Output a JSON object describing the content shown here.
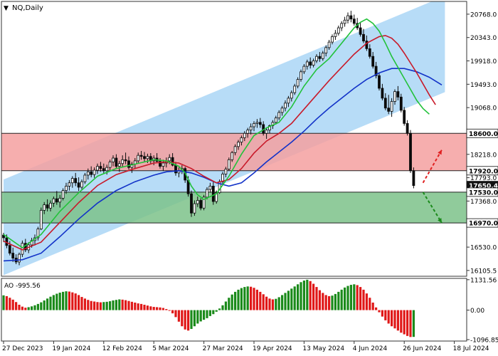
{
  "chart_data": {
    "type": "candlestick",
    "title": "NQ,Daily",
    "symbol_marker": "▼",
    "colors": {
      "channel_fill": "#b7dcf7",
      "upper_zone": "#f4a0a0",
      "lower_zone": "#7dc28a",
      "candle": "#0a0a0a",
      "ma_fast": "#22c23a",
      "ma_mid": "#c81a2a",
      "ma_slow": "#1232c8",
      "ao_up": "#1a8a1a",
      "ao_down": "#e01818",
      "arrow_up": "#e02020",
      "arrow_down": "#1a8a1a"
    },
    "price_axis": {
      "ylim": [
        16000,
        21000
      ],
      "ticks": [
        "20768.0",
        "20343.0",
        "19918.0",
        "19493.0",
        "19068.0",
        "18643.0",
        "18218.0",
        "17793.0",
        "17368.0",
        "16943.0",
        "16530.0",
        "16105.5"
      ]
    },
    "levels": [
      {
        "label": "18600.0",
        "value": 18600,
        "style": "line"
      },
      {
        "label": "17920.0",
        "value": 17920,
        "style": "line"
      },
      {
        "label": "17650.4",
        "value": 17650.4,
        "style": "current"
      },
      {
        "label": "17530.0",
        "value": 17530,
        "style": "line"
      },
      {
        "label": "16970.0",
        "value": 16970,
        "style": "line"
      }
    ],
    "zones": [
      {
        "name": "resistance-zone",
        "from": 17920,
        "to": 18600
      },
      {
        "name": "support-zone",
        "from": 16970,
        "to": 17530
      }
    ],
    "channel": {
      "upper": [
        [
          0,
          17760
        ],
        [
          141,
          21100
        ]
      ],
      "lower": [
        [
          0,
          16020
        ],
        [
          141,
          19350
        ]
      ]
    },
    "ohlc": [
      [
        16750,
        16790,
        16620,
        16700
      ],
      [
        16700,
        16760,
        16510,
        16560
      ],
      [
        16560,
        16640,
        16380,
        16420
      ],
      [
        16420,
        16520,
        16260,
        16330
      ],
      [
        16330,
        16400,
        16220,
        16260
      ],
      [
        16260,
        16430,
        16200,
        16400
      ],
      [
        16400,
        16650,
        16350,
        16600
      ],
      [
        16600,
        16680,
        16440,
        16480
      ],
      [
        16480,
        16620,
        16420,
        16570
      ],
      [
        16570,
        16700,
        16520,
        16650
      ],
      [
        16650,
        16760,
        16560,
        16700
      ],
      [
        16700,
        16900,
        16650,
        16860
      ],
      [
        16860,
        17250,
        16840,
        17200
      ],
      [
        17200,
        17350,
        17130,
        17300
      ],
      [
        17300,
        17400,
        17180,
        17240
      ],
      [
        17240,
        17380,
        17180,
        17330
      ],
      [
        17330,
        17450,
        17260,
        17410
      ],
      [
        17410,
        17550,
        17300,
        17350
      ],
      [
        17350,
        17480,
        17250,
        17420
      ],
      [
        17420,
        17600,
        17380,
        17560
      ],
      [
        17560,
        17700,
        17500,
        17640
      ],
      [
        17640,
        17750,
        17560,
        17700
      ],
      [
        17700,
        17820,
        17610,
        17780
      ],
      [
        17780,
        17880,
        17640,
        17700
      ],
      [
        17700,
        17800,
        17550,
        17620
      ],
      [
        17620,
        17760,
        17560,
        17720
      ],
      [
        17720,
        17880,
        17680,
        17840
      ],
      [
        17840,
        17960,
        17760,
        17900
      ],
      [
        17900,
        18000,
        17800,
        17850
      ],
      [
        17850,
        17980,
        17790,
        17930
      ],
      [
        17930,
        18050,
        17860,
        18000
      ],
      [
        18000,
        18080,
        17900,
        17960
      ],
      [
        17960,
        18050,
        17860,
        17920
      ],
      [
        17920,
        18030,
        17850,
        17980
      ],
      [
        17980,
        18120,
        17930,
        18080
      ],
      [
        18080,
        18200,
        18000,
        18150
      ],
      [
        18150,
        18220,
        17950,
        18000
      ],
      [
        18000,
        18100,
        17900,
        18050
      ],
      [
        18050,
        18200,
        17980,
        18120
      ],
      [
        18120,
        18250,
        18040,
        18100
      ],
      [
        18100,
        18180,
        17940,
        17980
      ],
      [
        17980,
        18080,
        17880,
        18040
      ],
      [
        18040,
        18150,
        17960,
        18100
      ],
      [
        18100,
        18250,
        18060,
        18200
      ],
      [
        18200,
        18280,
        18120,
        18180
      ],
      [
        18180,
        18260,
        18080,
        18140
      ],
      [
        18140,
        18230,
        18060,
        18180
      ],
      [
        18180,
        18240,
        18050,
        18100
      ],
      [
        18100,
        18200,
        18020,
        18150
      ],
      [
        18150,
        18240,
        18060,
        18090
      ],
      [
        18090,
        18150,
        17960,
        18000
      ],
      [
        18000,
        18120,
        17920,
        18060
      ],
      [
        18060,
        18160,
        17980,
        18100
      ],
      [
        18100,
        18220,
        18040,
        18160
      ],
      [
        18160,
        18240,
        18000,
        18020
      ],
      [
        18020,
        18080,
        17830,
        17880
      ],
      [
        17880,
        17980,
        17800,
        17920
      ],
      [
        17920,
        18020,
        17860,
        17960
      ],
      [
        17960,
        17990,
        17700,
        17750
      ],
      [
        17750,
        17820,
        17450,
        17500
      ],
      [
        17500,
        17560,
        17080,
        17150
      ],
      [
        17150,
        17380,
        17100,
        17320
      ],
      [
        17320,
        17450,
        17260,
        17380
      ],
      [
        17380,
        17420,
        17200,
        17240
      ],
      [
        17240,
        17480,
        17200,
        17440
      ],
      [
        17440,
        17620,
        17400,
        17580
      ],
      [
        17580,
        17700,
        17520,
        17640
      ],
      [
        17640,
        17720,
        17300,
        17360
      ],
      [
        17360,
        17560,
        17320,
        17520
      ],
      [
        17520,
        17760,
        17500,
        17720
      ],
      [
        17720,
        17900,
        17680,
        17860
      ],
      [
        17860,
        17990,
        17800,
        17950
      ],
      [
        17950,
        18160,
        17920,
        18120
      ],
      [
        18120,
        18280,
        18080,
        18250
      ],
      [
        18250,
        18400,
        18200,
        18360
      ],
      [
        18360,
        18480,
        18300,
        18440
      ],
      [
        18440,
        18560,
        18380,
        18520
      ],
      [
        18520,
        18640,
        18460,
        18600
      ],
      [
        18600,
        18700,
        18520,
        18660
      ],
      [
        18660,
        18780,
        18580,
        18720
      ],
      [
        18720,
        18820,
        18640,
        18780
      ],
      [
        18780,
        18860,
        18700,
        18800
      ],
      [
        18800,
        18880,
        18700,
        18760
      ],
      [
        18760,
        18820,
        18560,
        18600
      ],
      [
        18600,
        18700,
        18500,
        18660
      ],
      [
        18660,
        18760,
        18600,
        18740
      ],
      [
        18740,
        18840,
        18680,
        18800
      ],
      [
        18800,
        18920,
        18760,
        18880
      ],
      [
        18880,
        19020,
        18840,
        18980
      ],
      [
        18980,
        19100,
        18920,
        19060
      ],
      [
        19060,
        19200,
        19000,
        19150
      ],
      [
        19150,
        19280,
        19080,
        19240
      ],
      [
        19240,
        19380,
        19180,
        19340
      ],
      [
        19340,
        19500,
        19300,
        19460
      ],
      [
        19460,
        19620,
        19420,
        19580
      ],
      [
        19580,
        19760,
        19540,
        19720
      ],
      [
        19720,
        19860,
        19680,
        19820
      ],
      [
        19820,
        19940,
        19760,
        19900
      ],
      [
        19900,
        19980,
        19780,
        19840
      ],
      [
        19840,
        19960,
        19800,
        19920
      ],
      [
        19920,
        20040,
        19880,
        20000
      ],
      [
        20000,
        20080,
        19900,
        19960
      ],
      [
        19960,
        20100,
        19920,
        20060
      ],
      [
        20060,
        20200,
        20000,
        20160
      ],
      [
        20160,
        20300,
        20120,
        20260
      ],
      [
        20260,
        20400,
        20220,
        20360
      ],
      [
        20360,
        20480,
        20300,
        20420
      ],
      [
        20420,
        20560,
        20380,
        20520
      ],
      [
        20520,
        20640,
        20460,
        20600
      ],
      [
        20600,
        20720,
        20540,
        20660
      ],
      [
        20660,
        20800,
        20600,
        20740
      ],
      [
        20740,
        20830,
        20620,
        20680
      ],
      [
        20680,
        20760,
        20560,
        20600
      ],
      [
        20600,
        20700,
        20480,
        20520
      ],
      [
        20520,
        20620,
        20360,
        20400
      ],
      [
        20400,
        20500,
        20240,
        20280
      ],
      [
        20280,
        20380,
        20100,
        20140
      ],
      [
        20140,
        20220,
        19960,
        20000
      ],
      [
        20000,
        20080,
        19780,
        19820
      ],
      [
        19820,
        19900,
        19600,
        19650
      ],
      [
        19650,
        19700,
        19380,
        19420
      ],
      [
        19420,
        19500,
        19200,
        19240
      ],
      [
        19240,
        19330,
        19020,
        19060
      ],
      [
        19060,
        19300,
        18950,
        19000
      ],
      [
        19000,
        19240,
        18900,
        19180
      ],
      [
        19180,
        19400,
        19120,
        19360
      ],
      [
        19360,
        19460,
        19200,
        19260
      ],
      [
        19260,
        19320,
        18980,
        19020
      ],
      [
        19020,
        19080,
        18740,
        18780
      ],
      [
        18780,
        18840,
        18560,
        18600
      ],
      [
        18600,
        18660,
        17880,
        17920
      ],
      [
        17920,
        17980,
        17600,
        17650.4
      ]
    ],
    "ma_fast": [
      [
        0,
        16760
      ],
      [
        6,
        16520
      ],
      [
        12,
        16760
      ],
      [
        18,
        17180
      ],
      [
        24,
        17520
      ],
      [
        30,
        17820
      ],
      [
        36,
        17960
      ],
      [
        42,
        18040
      ],
      [
        48,
        18120
      ],
      [
        52,
        18100
      ],
      [
        56,
        18000
      ],
      [
        58,
        17880
      ],
      [
        60,
        17640
      ],
      [
        62,
        17480
      ],
      [
        64,
        17400
      ],
      [
        68,
        17500
      ],
      [
        72,
        17820
      ],
      [
        76,
        18220
      ],
      [
        80,
        18560
      ],
      [
        84,
        18700
      ],
      [
        88,
        18800
      ],
      [
        92,
        19080
      ],
      [
        96,
        19460
      ],
      [
        100,
        19760
      ],
      [
        104,
        19960
      ],
      [
        108,
        20240
      ],
      [
        112,
        20520
      ],
      [
        114,
        20620
      ],
      [
        116,
        20680
      ],
      [
        118,
        20600
      ],
      [
        120,
        20460
      ],
      [
        122,
        20240
      ],
      [
        124,
        20000
      ],
      [
        126,
        19800
      ],
      [
        128,
        19600
      ],
      [
        130,
        19400
      ],
      [
        132,
        19200
      ],
      [
        134,
        19050
      ],
      [
        136,
        18950
      ]
    ],
    "ma_mid": [
      [
        0,
        16640
      ],
      [
        6,
        16480
      ],
      [
        12,
        16620
      ],
      [
        18,
        16980
      ],
      [
        24,
        17340
      ],
      [
        30,
        17650
      ],
      [
        36,
        17850
      ],
      [
        42,
        17960
      ],
      [
        48,
        18060
      ],
      [
        52,
        18080
      ],
      [
        56,
        18060
      ],
      [
        60,
        17960
      ],
      [
        64,
        17820
      ],
      [
        68,
        17700
      ],
      [
        72,
        17760
      ],
      [
        76,
        17960
      ],
      [
        80,
        18240
      ],
      [
        84,
        18460
      ],
      [
        88,
        18600
      ],
      [
        92,
        18780
      ],
      [
        96,
        19040
      ],
      [
        100,
        19300
      ],
      [
        104,
        19560
      ],
      [
        108,
        19800
      ],
      [
        112,
        20040
      ],
      [
        116,
        20240
      ],
      [
        120,
        20360
      ],
      [
        122,
        20380
      ],
      [
        124,
        20330
      ],
      [
        126,
        20220
      ],
      [
        128,
        20060
      ],
      [
        130,
        19880
      ],
      [
        132,
        19700
      ],
      [
        134,
        19500
      ],
      [
        136,
        19300
      ],
      [
        138,
        19120
      ]
    ],
    "ma_slow": [
      [
        0,
        16280
      ],
      [
        6,
        16300
      ],
      [
        12,
        16420
      ],
      [
        18,
        16720
      ],
      [
        24,
        17040
      ],
      [
        30,
        17330
      ],
      [
        36,
        17560
      ],
      [
        42,
        17720
      ],
      [
        48,
        17840
      ],
      [
        52,
        17900
      ],
      [
        56,
        17920
      ],
      [
        60,
        17880
      ],
      [
        64,
        17800
      ],
      [
        68,
        17700
      ],
      [
        72,
        17640
      ],
      [
        76,
        17700
      ],
      [
        80,
        17880
      ],
      [
        84,
        18080
      ],
      [
        88,
        18260
      ],
      [
        92,
        18440
      ],
      [
        96,
        18640
      ],
      [
        100,
        18860
      ],
      [
        104,
        19060
      ],
      [
        108,
        19240
      ],
      [
        112,
        19420
      ],
      [
        116,
        19580
      ],
      [
        120,
        19700
      ],
      [
        124,
        19780
      ],
      [
        128,
        19780
      ],
      [
        132,
        19720
      ],
      [
        136,
        19620
      ],
      [
        140,
        19480
      ]
    ],
    "ao": {
      "label": "AO -995.56",
      "ylim": [
        -1150,
        1180
      ],
      "ticks": [
        "1131.56",
        "0.00",
        "-1096.85"
      ],
      "values": [
        550,
        520,
        460,
        390,
        300,
        200,
        130,
        90,
        110,
        140,
        180,
        230,
        290,
        360,
        430,
        500,
        560,
        610,
        650,
        680,
        700,
        690,
        660,
        620,
        560,
        490,
        430,
        380,
        340,
        320,
        300,
        290,
        300,
        310,
        330,
        360,
        380,
        400,
        390,
        370,
        340,
        310,
        280,
        250,
        230,
        200,
        170,
        140,
        120,
        110,
        100,
        80,
        40,
        -20,
        -120,
        -260,
        -430,
        -600,
        -720,
        -760,
        -700,
        -600,
        -500,
        -420,
        -360,
        -300,
        -220,
        -150,
        -60,
        60,
        180,
        320,
        460,
        580,
        680,
        760,
        820,
        860,
        880,
        870,
        830,
        760,
        680,
        590,
        500,
        430,
        400,
        420,
        480,
        560,
        640,
        720,
        800,
        880,
        960,
        1040,
        1100,
        1130,
        1080,
        980,
        860,
        740,
        640,
        560,
        520,
        540,
        600,
        680,
        760,
        840,
        900,
        940,
        960,
        930,
        860,
        760,
        620,
        460,
        280,
        100,
        -80,
        -240,
        -380,
        -500,
        -600,
        -680,
        -760,
        -840,
        -900,
        -960,
        -1000,
        -995.56
      ]
    },
    "x_ticks": [
      {
        "label": "27 Dec 2023",
        "index": 0
      },
      {
        "label": "19 Jan 2024",
        "index": 16
      },
      {
        "label": "12 Feb 2024",
        "index": 32
      },
      {
        "label": "5 Mar 2024",
        "index": 48
      },
      {
        "label": "27 Mar 2024",
        "index": 64
      },
      {
        "label": "19 Apr 2024",
        "index": 80
      },
      {
        "label": "13 May 2024",
        "index": 96
      },
      {
        "label": "4 Jun 2024",
        "index": 112
      },
      {
        "label": "26 Jun 2024",
        "index": 128
      },
      {
        "label": "18 Jul 2024",
        "index": 144
      }
    ],
    "forecast": {
      "up": {
        "from": [
          134,
          17700
        ],
        "to": [
          140,
          18300
        ]
      },
      "down": {
        "from": [
          134,
          17530
        ],
        "to": [
          140,
          16970
        ]
      }
    }
  }
}
